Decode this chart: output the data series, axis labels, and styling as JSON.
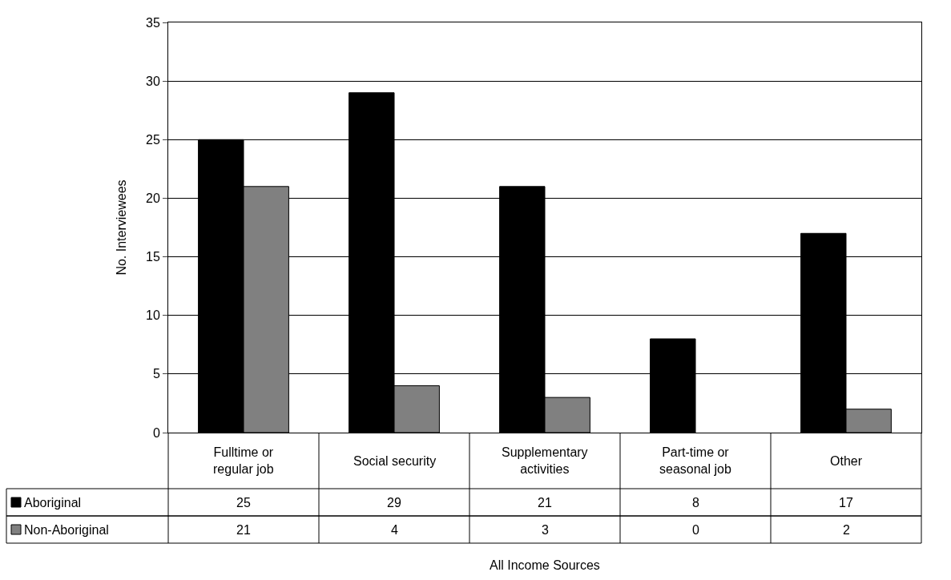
{
  "chart_data": {
    "type": "bar",
    "annotations": [
      "All Income Sources"
    ],
    "ylabel": "No. Interviewees",
    "categories": [
      "Fulltime or regular job",
      "Social security",
      "Supplementary activities",
      "Part-time or seasonal job",
      "Other"
    ],
    "series": [
      {
        "name": "Aboriginal",
        "color": "#000000",
        "values": [
          25,
          29,
          21,
          8,
          17
        ]
      },
      {
        "name": "Non-Aboriginal",
        "color": "#808080",
        "values": [
          21,
          4,
          3,
          0,
          2
        ]
      }
    ],
    "ylim": [
      0,
      35
    ],
    "yticks": [
      0,
      5,
      10,
      15,
      20,
      25,
      30,
      35
    ],
    "grid": "y",
    "data_labels": true,
    "legend": "bottom left"
  }
}
